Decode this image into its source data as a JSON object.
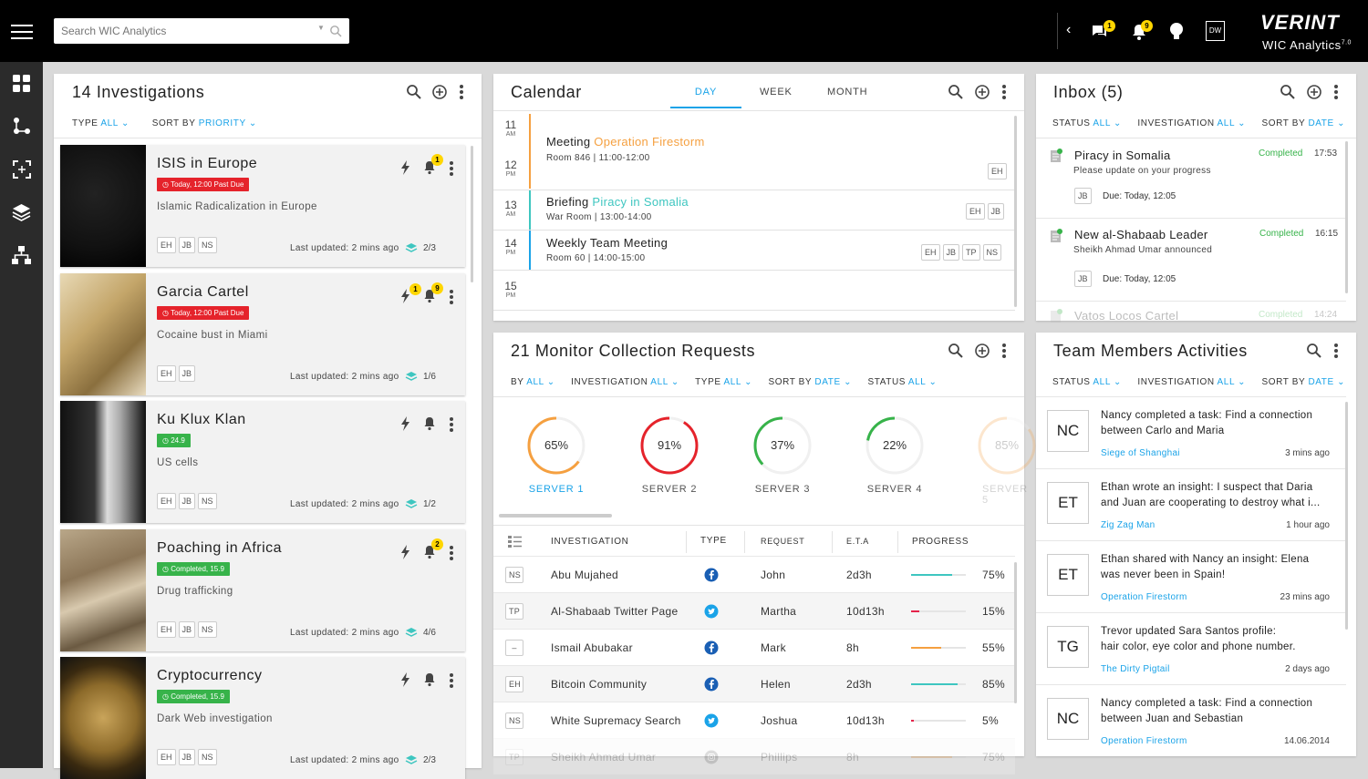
{
  "app": {
    "search_placeholder": "Search WIC Analytics",
    "brand": "VERINT",
    "product": "WIC Analytics",
    "version": "7.0",
    "user_initials": "DW",
    "notif_messages": "1",
    "notif_alerts": "9"
  },
  "investigations": {
    "title": "14 Investigations",
    "filter_type_label": "TYPE",
    "filter_type_value": "ALL",
    "sort_label": "SORT BY",
    "sort_value": "PRIORITY",
    "items": [
      {
        "title": "ISIS in Europe",
        "badge": "Today, 12:00 Past Due",
        "badge_type": "red",
        "desc": "Islamic Radicalization in Europe",
        "tags": [
          "EH",
          "JB",
          "NS"
        ],
        "updated": "Last updated: 2 mins ago",
        "count": "2/3",
        "bell_count": "1",
        "flash_count": ""
      },
      {
        "title": "Garcia Cartel",
        "badge": "Today, 12:00 Past Due",
        "badge_type": "red",
        "desc": "Cocaine bust in Miami",
        "tags": [
          "EH",
          "JB"
        ],
        "updated": "Last updated: 2 mins ago",
        "count": "1/6",
        "bell_count": "9",
        "flash_count": "1"
      },
      {
        "title": "Ku Klux Klan",
        "badge": "24.9",
        "badge_type": "green",
        "desc": "US cells",
        "tags": [
          "EH",
          "JB",
          "NS"
        ],
        "updated": "Last updated: 2 mins ago",
        "count": "1/2",
        "bell_count": "",
        "flash_count": ""
      },
      {
        "title": "Poaching in Africa",
        "badge": "Completed, 15.9",
        "badge_type": "green",
        "desc": "Drug trafficking",
        "tags": [
          "EH",
          "JB",
          "NS"
        ],
        "updated": "Last updated: 2 mins ago",
        "count": "4/6",
        "bell_count": "2",
        "flash_count": ""
      },
      {
        "title": "Cryptocurrency",
        "badge": "Completed, 15.9",
        "badge_type": "green",
        "desc": "Dark Web investigation",
        "tags": [
          "EH",
          "JB",
          "NS"
        ],
        "updated": "Last updated: 2 mins ago",
        "count": "2/3",
        "bell_count": "",
        "flash_count": ""
      }
    ]
  },
  "calendar": {
    "title": "Calendar",
    "tabs": [
      "DAY",
      "WEEK",
      "MONTH"
    ],
    "active_tab": "DAY",
    "hours": [
      {
        "num": "11",
        "ampm": "AM"
      },
      {
        "num": "12",
        "ampm": "PM"
      },
      {
        "num": "13",
        "ampm": "AM"
      },
      {
        "num": "14",
        "ampm": "PM"
      },
      {
        "num": "15",
        "ampm": "PM"
      }
    ],
    "events": [
      {
        "type": "Meeting",
        "link": "Operation Firestorm",
        "link_color": "#f5a040",
        "sub": "Room 846 | 11:00-12:00",
        "tags": [
          "EH"
        ]
      },
      {
        "type": "Briefing",
        "link": "Piracy in Somalia",
        "link_color": "#3ec6c0",
        "sub": "War Room | 13:00-14:00",
        "tags": [
          "EH",
          "JB"
        ]
      },
      {
        "type": "Weekly Team Meeting",
        "link": "",
        "link_color": "",
        "sub": "Room 60 | 14:00-15:00",
        "tags": [
          "EH",
          "JB",
          "TP",
          "NS"
        ]
      }
    ]
  },
  "inbox": {
    "title": "Inbox (5)",
    "filters": [
      {
        "label": "STATUS",
        "value": "ALL"
      },
      {
        "label": "INVESTIGATION",
        "value": "ALL"
      },
      {
        "label": "SORT BY",
        "value": "DATE"
      }
    ],
    "items": [
      {
        "title": "Piracy in Somalia",
        "status": "Completed",
        "time": "17:53",
        "desc": "Please update on your progress",
        "tag": "JB",
        "due": "Due: Today, 12:05"
      },
      {
        "title": "New al-Shabaab Leader",
        "status": "Completed",
        "time": "16:15",
        "desc": "Sheikh Ahmad Umar announced",
        "tag": "JB",
        "due": "Due: Today, 12:05"
      },
      {
        "title": "Vatos Locos Cartel",
        "status": "Completed",
        "time": "14:24",
        "desc": "",
        "tag": "",
        "due": ""
      }
    ]
  },
  "monitor": {
    "title": "21 Monitor Collection Requests",
    "filters": [
      {
        "label": "BY",
        "value": "ALL"
      },
      {
        "label": "INVESTIGATION",
        "value": "ALL"
      },
      {
        "label": "TYPE",
        "value": "ALL"
      },
      {
        "label": "SORT BY",
        "value": "DATE"
      },
      {
        "label": "STATUS",
        "value": "ALL"
      }
    ],
    "servers": [
      {
        "name": "SERVER 1",
        "pct": 65,
        "label": "65%",
        "color": "#f5a040",
        "active": true
      },
      {
        "name": "SERVER 2",
        "pct": 91,
        "label": "91%",
        "color": "#e5232b",
        "active": false
      },
      {
        "name": "SERVER 3",
        "pct": 37,
        "label": "37%",
        "color": "#37b34a",
        "active": false
      },
      {
        "name": "SERVER 4",
        "pct": 22,
        "label": "22%",
        "color": "#37b34a",
        "active": false
      },
      {
        "name": "SERVER 5",
        "pct": 85,
        "label": "85%",
        "color": "#f5a040",
        "active": false
      }
    ],
    "columns": [
      "INVESTIGATION",
      "TYPE",
      "REQUEST",
      "E.T.A",
      "PROGRESS"
    ],
    "rows": [
      {
        "tag": "NS",
        "investigation": "Abu Mujahed",
        "type": "facebook",
        "request": "John",
        "eta": "2d3h",
        "progress": 75,
        "progress_label": "75%",
        "color": "#3ec6c0"
      },
      {
        "tag": "TP",
        "investigation": "Al-Shabaab Twitter Page",
        "type": "twitter",
        "request": "Martha",
        "eta": "10d13h",
        "progress": 15,
        "progress_label": "15%",
        "color": "#e5234a"
      },
      {
        "tag": "–",
        "investigation": "Ismail Abubakar",
        "type": "facebook",
        "request": "Mark",
        "eta": "8h",
        "progress": 55,
        "progress_label": "55%",
        "color": "#f5a040"
      },
      {
        "tag": "EH",
        "investigation": "Bitcoin Community",
        "type": "facebook",
        "request": "Helen",
        "eta": "2d3h",
        "progress": 85,
        "progress_label": "85%",
        "color": "#3ec6c0"
      },
      {
        "tag": "NS",
        "investigation": "White Supremacy Search",
        "type": "twitter",
        "request": "Joshua",
        "eta": "10d13h",
        "progress": 5,
        "progress_label": "5%",
        "color": "#e5234a"
      },
      {
        "tag": "TP",
        "investigation": "Sheikh Ahmad Umar",
        "type": "instagram",
        "request": "Phillips",
        "eta": "8h",
        "progress": 75,
        "progress_label": "75%",
        "color": "#f5a040"
      }
    ]
  },
  "team": {
    "title": "Team Members Activities",
    "filters": [
      {
        "label": "STATUS",
        "value": "ALL"
      },
      {
        "label": "INVESTIGATION",
        "value": "ALL"
      },
      {
        "label": "SORT BY",
        "value": "DATE"
      }
    ],
    "items": [
      {
        "initials": "NC",
        "line1": "Nancy completed a task: Find a connection",
        "line2": "between Carlo and Maria",
        "link": "Siege of Shanghai",
        "ago": "3 mins ago"
      },
      {
        "initials": "ET",
        "line1": "Ethan wrote an insight: I suspect that  Daria",
        "line2": "and Juan are cooperating to destroy what i...",
        "link": "Zig Zag Man",
        "ago": "1 hour ago"
      },
      {
        "initials": "ET",
        "line1": "Ethan shared with Nancy an insight: Elena",
        "line2": "was never been in Spain!",
        "link": "Operation Firestorm",
        "ago": "23 mins ago"
      },
      {
        "initials": "TG",
        "line1": "Trevor updated Sara Santos profile:",
        "line2": "hair color, eye color and phone number.",
        "link": "The Dirty Pigtail",
        "ago": "2 days ago"
      },
      {
        "initials": "NC",
        "line1": "Nancy completed a task: Find a connection",
        "line2": "between Juan and Sebastian",
        "link": "Operation Firestorm",
        "ago": "14.06.2014"
      }
    ]
  }
}
